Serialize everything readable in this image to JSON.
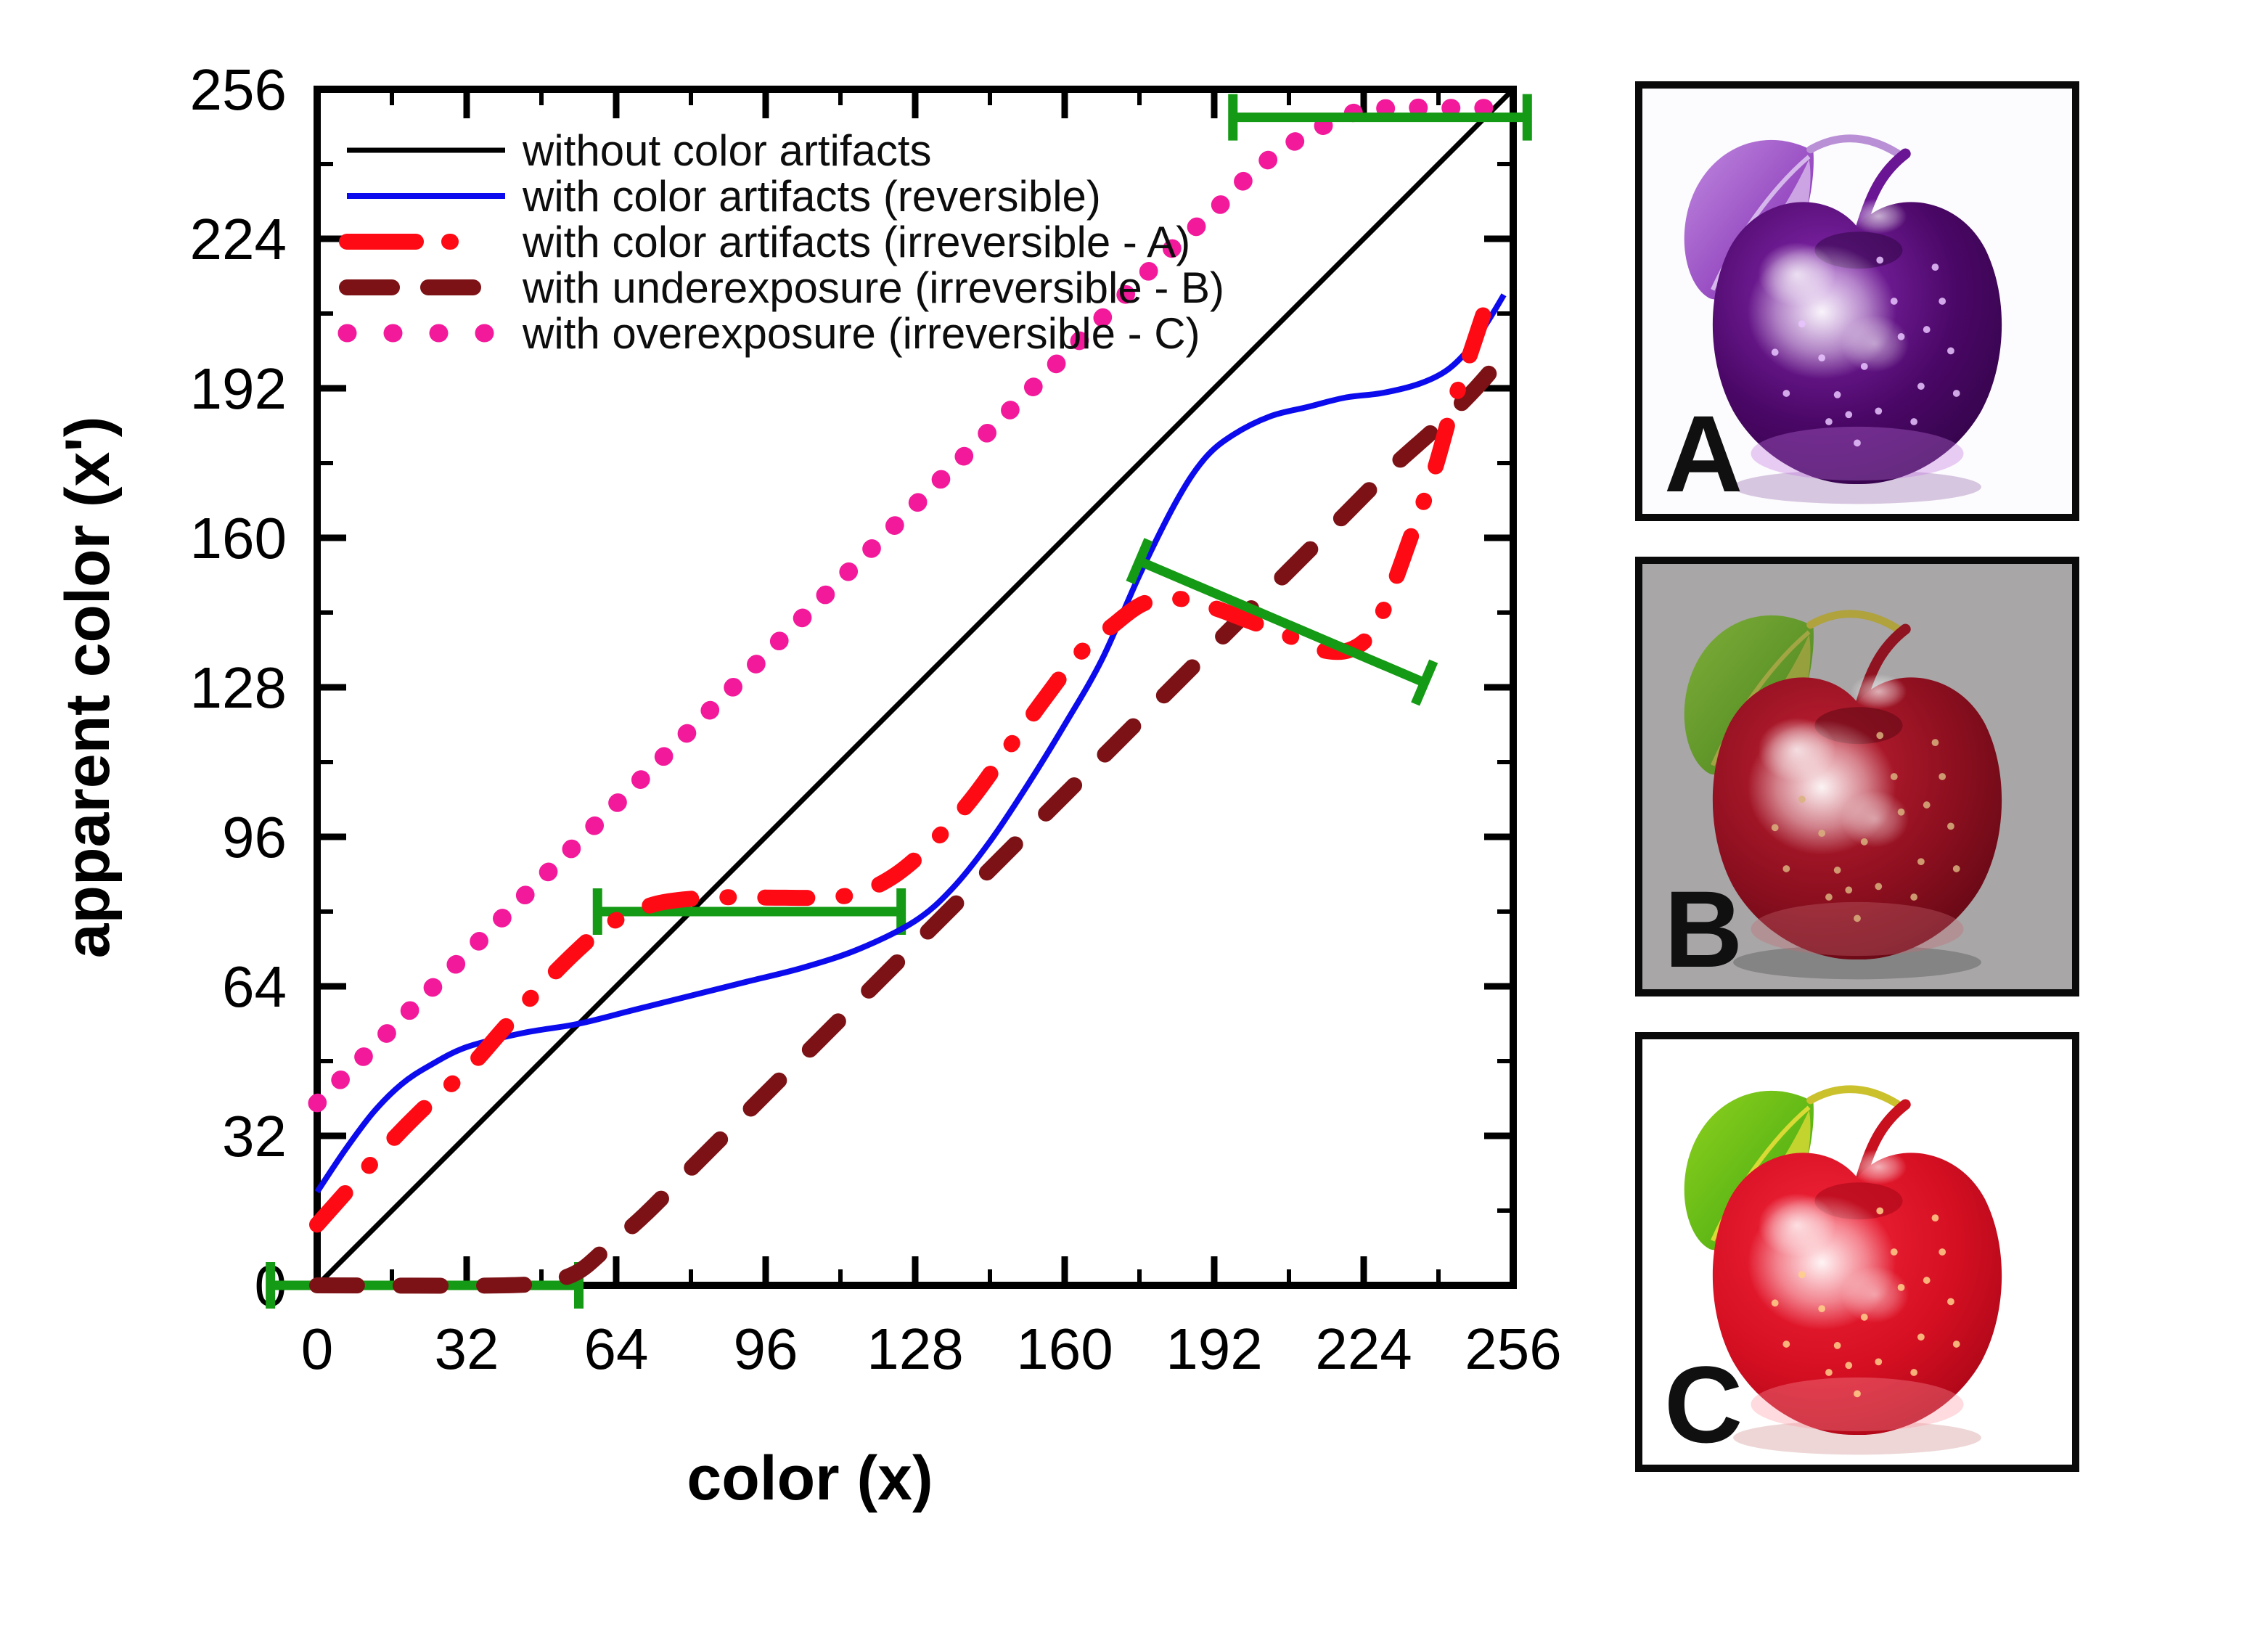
{
  "chart_data": {
    "type": "line",
    "title": "",
    "xlabel": "color (x)",
    "ylabel": "apparent color (x')",
    "xlim": [
      0,
      256
    ],
    "ylim": [
      0,
      256
    ],
    "xticks": [
      0,
      32,
      64,
      96,
      128,
      160,
      192,
      224,
      256
    ],
    "yticks": [
      0,
      32,
      64,
      96,
      128,
      160,
      192,
      224,
      256
    ],
    "minor_tick_step": 16,
    "grid": false,
    "legend_position": "top-left-inside",
    "series": [
      {
        "name": "without color artifacts",
        "color": "#000000",
        "style": "solid",
        "width": 7,
        "points": [
          [
            0,
            0
          ],
          [
            256,
            256
          ]
        ]
      },
      {
        "name": "with overexposure (irreversible - C)",
        "color": "#f3199b",
        "style": "dotted",
        "width": 25,
        "points": [
          [
            0,
            39
          ],
          [
            16,
            55
          ],
          [
            32,
            71
          ],
          [
            48,
            87
          ],
          [
            64,
            103
          ],
          [
            80,
            119
          ],
          [
            96,
            135
          ],
          [
            112,
            151
          ],
          [
            128,
            167
          ],
          [
            144,
            183
          ],
          [
            160,
            199
          ],
          [
            172,
            211
          ],
          [
            182,
            221
          ],
          [
            192,
            230
          ],
          [
            200,
            238
          ],
          [
            208,
            244
          ],
          [
            215,
            248
          ],
          [
            222,
            251
          ],
          [
            230,
            252
          ],
          [
            240,
            252
          ],
          [
            250,
            252
          ],
          [
            256,
            252
          ]
        ]
      },
      {
        "name": "with underexposure (irreversible - B)",
        "color": "#7d1216",
        "style": "dashed",
        "width": 22,
        "points": [
          [
            0,
            0
          ],
          [
            40,
            0
          ],
          [
            50,
            1
          ],
          [
            56,
            3
          ],
          [
            62,
            8
          ],
          [
            70,
            15
          ],
          [
            80,
            25
          ],
          [
            90,
            35
          ],
          [
            100,
            45
          ],
          [
            112,
            57
          ],
          [
            124,
            69
          ],
          [
            136,
            81
          ],
          [
            148,
            93
          ],
          [
            160,
            105
          ],
          [
            172,
            117
          ],
          [
            184,
            129
          ],
          [
            196,
            141
          ],
          [
            208,
            153
          ],
          [
            220,
            165
          ],
          [
            230,
            175
          ],
          [
            240,
            184
          ],
          [
            248,
            192
          ],
          [
            254,
            199
          ]
        ]
      },
      {
        "name": "with color artifacts (reversible)",
        "color": "#0b0bee",
        "style": "solid",
        "width": 8,
        "points": [
          [
            0,
            20
          ],
          [
            6,
            29
          ],
          [
            12,
            37
          ],
          [
            18,
            43
          ],
          [
            24,
            47
          ],
          [
            32,
            51
          ],
          [
            44,
            54
          ],
          [
            56,
            56
          ],
          [
            68,
            59
          ],
          [
            80,
            62
          ],
          [
            92,
            65
          ],
          [
            104,
            68
          ],
          [
            116,
            72
          ],
          [
            128,
            78
          ],
          [
            136,
            85
          ],
          [
            144,
            95
          ],
          [
            152,
            107
          ],
          [
            160,
            120
          ],
          [
            168,
            134
          ],
          [
            176,
            152
          ],
          [
            184,
            168
          ],
          [
            190,
            177
          ],
          [
            196,
            182
          ],
          [
            204,
            186
          ],
          [
            212,
            188
          ],
          [
            220,
            190
          ],
          [
            228,
            191
          ],
          [
            236,
            193
          ],
          [
            242,
            196
          ],
          [
            247,
            201
          ],
          [
            251,
            207
          ],
          [
            254,
            212
          ]
        ]
      },
      {
        "name": "with color artifacts (irreversible - A)",
        "color": "#fd0a14",
        "style": "dashdot",
        "width": 22,
        "points": [
          [
            0,
            13
          ],
          [
            8,
            22
          ],
          [
            16,
            31
          ],
          [
            24,
            39
          ],
          [
            32,
            46
          ],
          [
            40,
            55
          ],
          [
            48,
            64
          ],
          [
            56,
            72
          ],
          [
            62,
            77
          ],
          [
            68,
            80
          ],
          [
            74,
            82
          ],
          [
            84,
            83
          ],
          [
            96,
            83
          ],
          [
            108,
            83
          ],
          [
            116,
            84
          ],
          [
            124,
            88
          ],
          [
            132,
            95
          ],
          [
            140,
            104
          ],
          [
            148,
            115
          ],
          [
            156,
            126
          ],
          [
            163,
            135
          ],
          [
            170,
            141
          ],
          [
            177,
            146
          ],
          [
            184,
            147
          ],
          [
            192,
            145
          ],
          [
            200,
            142
          ],
          [
            208,
            139
          ],
          [
            215,
            136
          ],
          [
            221,
            136
          ],
          [
            226,
            140
          ],
          [
            230,
            149
          ],
          [
            234,
            160
          ],
          [
            239,
            174
          ],
          [
            243,
            188
          ],
          [
            247,
            200
          ],
          [
            251,
            212
          ]
        ]
      }
    ],
    "error_bars": [
      {
        "x1": -10,
        "y1": 0,
        "x2": 56,
        "y2": 0,
        "color": "#149a14"
      },
      {
        "x1": 60,
        "y1": 80,
        "x2": 125,
        "y2": 80,
        "color": "#149a14"
      },
      {
        "x1": 176,
        "y1": 155,
        "x2": 237,
        "y2": 129,
        "color": "#149a14"
      },
      {
        "x1": 196,
        "y1": 250,
        "x2": 259,
        "y2": 250,
        "color": "#149a14"
      }
    ],
    "legend": [
      {
        "label": "without color artifacts",
        "series": 0
      },
      {
        "label": "with color artifacts (reversible)",
        "series": 3
      },
      {
        "label": "with color artifacts (irreversible - A)",
        "series": 4
      },
      {
        "label": "with underexposure (irreversible - B)",
        "series": 2
      },
      {
        "label": "with overexposure (irreversible - C)",
        "series": 1
      }
    ]
  },
  "panels": [
    {
      "label": "A",
      "background": "#fcfbfd",
      "border": "#0a0a0a",
      "apple": {
        "body1": "#8a2bb5",
        "body2": "#4a0766",
        "body3": "#2c0340",
        "leaf1": "#c08ae0",
        "leaf2": "#7c22ad",
        "leafEdge": "#ddc2ef",
        "stem": "#6a1694",
        "twig": "#b98fd6",
        "dots": "#e9c4ff",
        "glow": "#c073e0",
        "shadow": "rgba(120,60,150,0.28)"
      }
    },
    {
      "label": "B",
      "background": "#a8a6a7",
      "border": "#0a0a0a",
      "apple": {
        "body1": "#c22033",
        "body2": "#8c0f1f",
        "body3": "#570611",
        "leaf1": "#7fae3a",
        "leaf2": "#47821c",
        "leafEdge": "#aaa646",
        "stem": "#8f1320",
        "twig": "#b0a23c",
        "dots": "#d9b27e",
        "glow": "#c76a72",
        "shadow": "rgba(70,70,70,0.35)"
      }
    },
    {
      "label": "C",
      "background": "#ffffff",
      "border": "#0a0a0a",
      "apple": {
        "body1": "#f3253a",
        "body2": "#d50f22",
        "body3": "#9c0414",
        "leaf1": "#8fd11f",
        "leaf2": "#3da50e",
        "leafEdge": "#e6de38",
        "stem": "#c8101f",
        "twig": "#cbc12d",
        "dots": "#ffd089",
        "glow": "#ff96a0",
        "shadow": "rgba(200,120,120,0.30)"
      }
    }
  ]
}
